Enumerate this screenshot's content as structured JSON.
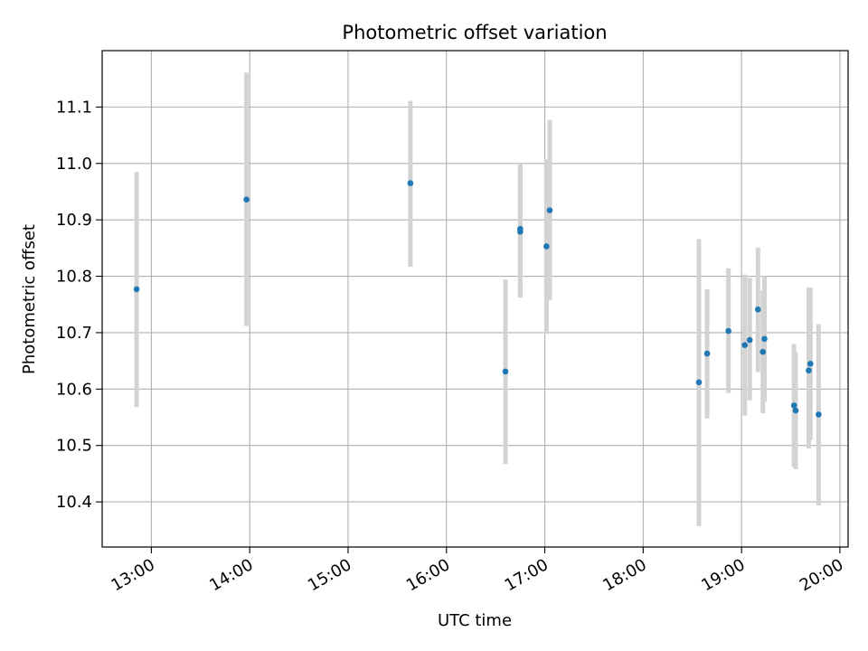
{
  "chart_data": {
    "type": "scatter",
    "title": "Photometric offset variation",
    "xlabel": "UTC time",
    "ylabel": "Photometric offset",
    "x_ticks": [
      {
        "label": "13:00",
        "value": "13:00"
      },
      {
        "label": "14:00",
        "value": "14:00"
      },
      {
        "label": "15:00",
        "value": "15:00"
      },
      {
        "label": "16:00",
        "value": "16:00"
      },
      {
        "label": "17:00",
        "value": "17:00"
      },
      {
        "label": "18:00",
        "value": "18:00"
      },
      {
        "label": "19:00",
        "value": "19:00"
      },
      {
        "label": "20:00",
        "value": "20:00"
      }
    ],
    "y_ticks": [
      10.4,
      10.5,
      10.6,
      10.7,
      10.8,
      10.9,
      11.0,
      11.1
    ],
    "y_tick_labels": [
      "10.4",
      "10.5",
      "10.6",
      "10.7",
      "10.8",
      "10.9",
      "11.0",
      "11.1"
    ],
    "xlim": [
      "12:30",
      "20:05"
    ],
    "ylim": [
      10.32,
      11.2
    ],
    "grid": true,
    "colors": {
      "point": "#1f77b4",
      "errorbar": "#d3d3d3",
      "grid": "#b0b0b0"
    },
    "points": [
      {
        "x": "12:51",
        "y": 10.777,
        "err_low": 10.568,
        "err_high": 10.985
      },
      {
        "x": "13:58",
        "y": 10.936,
        "err_low": 10.712,
        "err_high": 11.161
      },
      {
        "x": "15:38",
        "y": 10.965,
        "err_low": 10.817,
        "err_high": 11.111
      },
      {
        "x": "16:36",
        "y": 10.631,
        "err_low": 10.467,
        "err_high": 10.794
      },
      {
        "x": "16:45",
        "y": 10.884,
        "err_low": 10.764,
        "err_high": 11.0
      },
      {
        "x": "16:45",
        "y": 10.879,
        "err_low": 10.762,
        "err_high": 10.997
      },
      {
        "x": "17:01",
        "y": 10.853,
        "err_low": 10.698,
        "err_high": 11.007
      },
      {
        "x": "17:03",
        "y": 10.917,
        "err_low": 10.758,
        "err_high": 11.077
      },
      {
        "x": "18:34",
        "y": 10.612,
        "err_low": 10.357,
        "err_high": 10.866
      },
      {
        "x": "18:39",
        "y": 10.663,
        "err_low": 10.548,
        "err_high": 10.777
      },
      {
        "x": "18:52",
        "y": 10.703,
        "err_low": 10.593,
        "err_high": 10.814
      },
      {
        "x": "19:02",
        "y": 10.678,
        "err_low": 10.553,
        "err_high": 10.803
      },
      {
        "x": "19:05",
        "y": 10.687,
        "err_low": 10.58,
        "err_high": 10.797
      },
      {
        "x": "19:10",
        "y": 10.741,
        "err_low": 10.63,
        "err_high": 10.851
      },
      {
        "x": "19:13",
        "y": 10.666,
        "err_low": 10.557,
        "err_high": 10.775
      },
      {
        "x": "19:14",
        "y": 10.689,
        "err_low": 10.577,
        "err_high": 10.8
      },
      {
        "x": "19:32",
        "y": 10.571,
        "err_low": 10.462,
        "err_high": 10.68
      },
      {
        "x": "19:33",
        "y": 10.562,
        "err_low": 10.458,
        "err_high": 10.665
      },
      {
        "x": "19:41",
        "y": 10.633,
        "err_low": 10.495,
        "err_high": 10.78
      },
      {
        "x": "19:42",
        "y": 10.645,
        "err_low": 10.51,
        "err_high": 10.78
      },
      {
        "x": "19:47",
        "y": 10.555,
        "err_low": 10.394,
        "err_high": 10.715
      }
    ]
  }
}
